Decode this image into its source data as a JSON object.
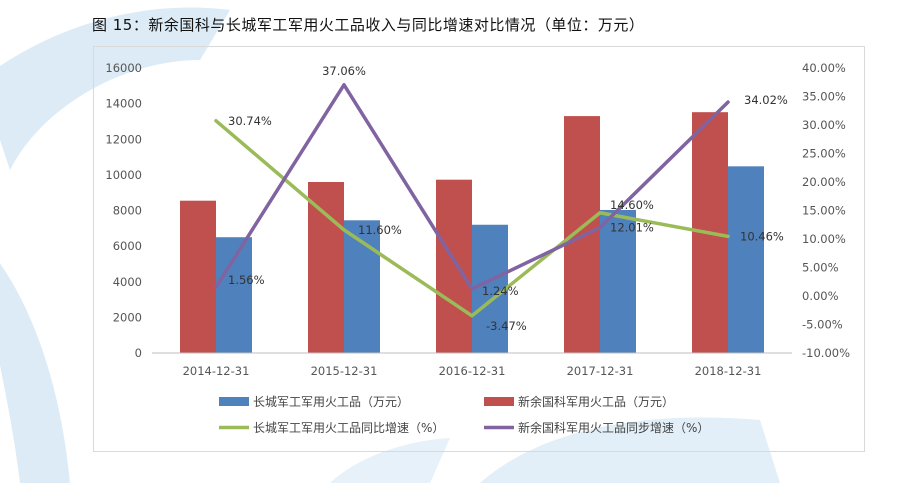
{
  "figure": {
    "title": "图 15：新余国科与长城军工军用火工品收入与同比增速对比情况（单位：万元）"
  },
  "chart_data": {
    "type": "bar",
    "title": "图 15：新余国科与长城军工军用火工品收入与同比增速对比情况（单位：万元）",
    "categories": [
      "2014-12-31",
      "2015-12-31",
      "2016-12-31",
      "2017-12-31",
      "2018-12-31"
    ],
    "series": [
      {
        "name": "新余国科军用火工品（万元）",
        "type": "bar",
        "axis": "left",
        "color": "#C0504D",
        "values": [
          8550,
          9600,
          9730,
          13300,
          13520
        ]
      },
      {
        "name": "长城军工军用火工品（万元）",
        "type": "bar",
        "axis": "left",
        "color": "#4F81BD",
        "values": [
          6500,
          7450,
          7200,
          8030,
          10480
        ]
      },
      {
        "name": "长城军工军用火工品同比增速（%）",
        "type": "line",
        "axis": "right",
        "color": "#9BBB59",
        "values": [
          30.74,
          11.6,
          -3.47,
          14.6,
          10.46
        ],
        "labels": [
          "30.74%",
          "11.60%",
          "-3.47%",
          "14.60%",
          "10.46%"
        ]
      },
      {
        "name": "新余国科军用火工品同步增速（%）",
        "type": "line",
        "axis": "right",
        "color": "#8064A2",
        "values": [
          1.56,
          37.06,
          1.24,
          12.01,
          34.02
        ],
        "labels": [
          "1.56%",
          "37.06%",
          "1.24%",
          "12.01%",
          "34.02%"
        ]
      }
    ],
    "y_left": {
      "min": 0,
      "max": 16000,
      "step": 2000,
      "ticks": [
        "0",
        "2000",
        "4000",
        "6000",
        "8000",
        "10000",
        "12000",
        "14000",
        "16000"
      ]
    },
    "y_right": {
      "min": -10,
      "max": 40,
      "step": 5,
      "ticks": [
        "-10.00%",
        "-5.00%",
        "0.00%",
        "5.00%",
        "10.00%",
        "15.00%",
        "20.00%",
        "25.00%",
        "30.00%",
        "35.00%",
        "40.00%"
      ]
    },
    "legend": {
      "position": "bottom",
      "items": [
        {
          "label": "长城军工军用火工品（万元）",
          "series": 1,
          "kind": "bar"
        },
        {
          "label": "新余国科军用火工品（万元）",
          "series": 0,
          "kind": "bar"
        },
        {
          "label": "长城军工军用火工品同比增速（%）",
          "series": 2,
          "kind": "line"
        },
        {
          "label": "新余国科军用火工品同步增速（%）",
          "series": 3,
          "kind": "line"
        }
      ]
    },
    "grid": false
  },
  "colors": {
    "accent_blue": "#4F81BD",
    "accent_red": "#C0504D",
    "accent_green": "#9BBB59",
    "accent_purple": "#8064A2",
    "decor": "#D6E8F5"
  }
}
